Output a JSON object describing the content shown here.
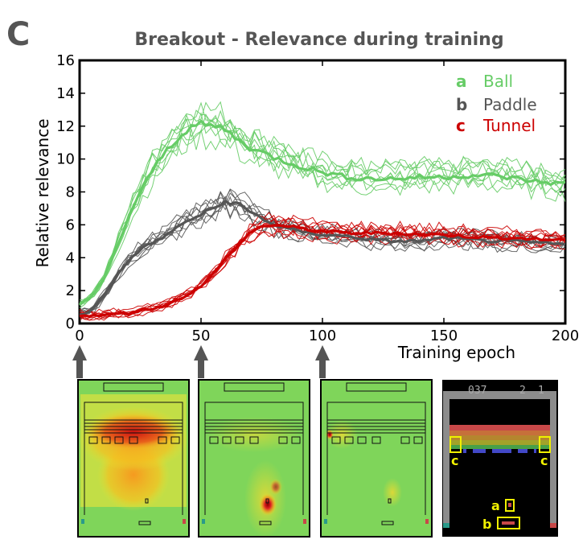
{
  "panel_letter": "C",
  "chart_data": {
    "type": "line",
    "title": "Breakout - Relevance during training",
    "xlabel": "Training epoch",
    "ylabel": "Relative relevance",
    "xlim": [
      0,
      200
    ],
    "ylim": [
      0,
      16
    ],
    "xticks": [
      "0",
      "50",
      "100",
      "150",
      "200"
    ],
    "yticks": [
      "0",
      "2",
      "4",
      "6",
      "8",
      "10",
      "12",
      "14",
      "16"
    ],
    "grid": false,
    "legend_position": "top-right",
    "series": [
      {
        "name": "Ball",
        "legend_letter": "a",
        "color": "#66cc66",
        "x": [
          0,
          5,
          10,
          15,
          20,
          25,
          30,
          35,
          40,
          45,
          50,
          55,
          60,
          65,
          70,
          75,
          80,
          90,
          100,
          110,
          120,
          130,
          140,
          150,
          160,
          170,
          180,
          190,
          200
        ],
        "values": [
          1.2,
          1.6,
          2.7,
          4.5,
          6.4,
          8.0,
          9.3,
          10.4,
          11.2,
          11.9,
          12.1,
          12.0,
          11.8,
          11.2,
          10.7,
          10.4,
          10.1,
          9.6,
          9.2,
          8.9,
          8.8,
          8.8,
          8.9,
          8.9,
          9.0,
          9.0,
          8.8,
          8.6,
          8.5
        ]
      },
      {
        "name": "Paddle",
        "legend_letter": "b",
        "color": "#555555",
        "x": [
          0,
          5,
          10,
          15,
          20,
          25,
          30,
          35,
          40,
          45,
          50,
          55,
          60,
          65,
          70,
          75,
          80,
          90,
          100,
          110,
          120,
          130,
          140,
          150,
          160,
          170,
          180,
          190,
          200
        ],
        "values": [
          0.5,
          0.8,
          1.7,
          2.8,
          3.8,
          4.5,
          4.9,
          5.3,
          5.8,
          6.3,
          6.6,
          7.0,
          7.4,
          7.3,
          6.8,
          6.4,
          6.0,
          5.6,
          5.4,
          5.3,
          5.1,
          5.0,
          5.0,
          5.2,
          5.1,
          5.0,
          5.0,
          4.9,
          4.8
        ]
      },
      {
        "name": "Tunnel",
        "legend_letter": "c",
        "color": "#cc0000",
        "x": [
          0,
          5,
          10,
          15,
          20,
          25,
          30,
          35,
          40,
          45,
          50,
          55,
          60,
          65,
          70,
          75,
          80,
          90,
          100,
          110,
          120,
          130,
          140,
          150,
          160,
          170,
          180,
          190,
          200
        ],
        "values": [
          0.5,
          0.5,
          0.5,
          0.6,
          0.6,
          0.8,
          0.9,
          1.1,
          1.4,
          1.8,
          2.3,
          3.0,
          3.9,
          4.7,
          5.5,
          5.9,
          6.0,
          5.8,
          5.6,
          5.5,
          5.5,
          5.5,
          5.4,
          5.4,
          5.3,
          5.2,
          5.2,
          5.1,
          5.1
        ]
      }
    ],
    "markers_at_epochs": [
      0,
      50,
      100
    ]
  },
  "game": {
    "score": "037",
    "lives": "2",
    "player": "1",
    "labels": {
      "ball": "a",
      "paddle": "b",
      "tunnel_left": "c",
      "tunnel_right": "c"
    }
  }
}
